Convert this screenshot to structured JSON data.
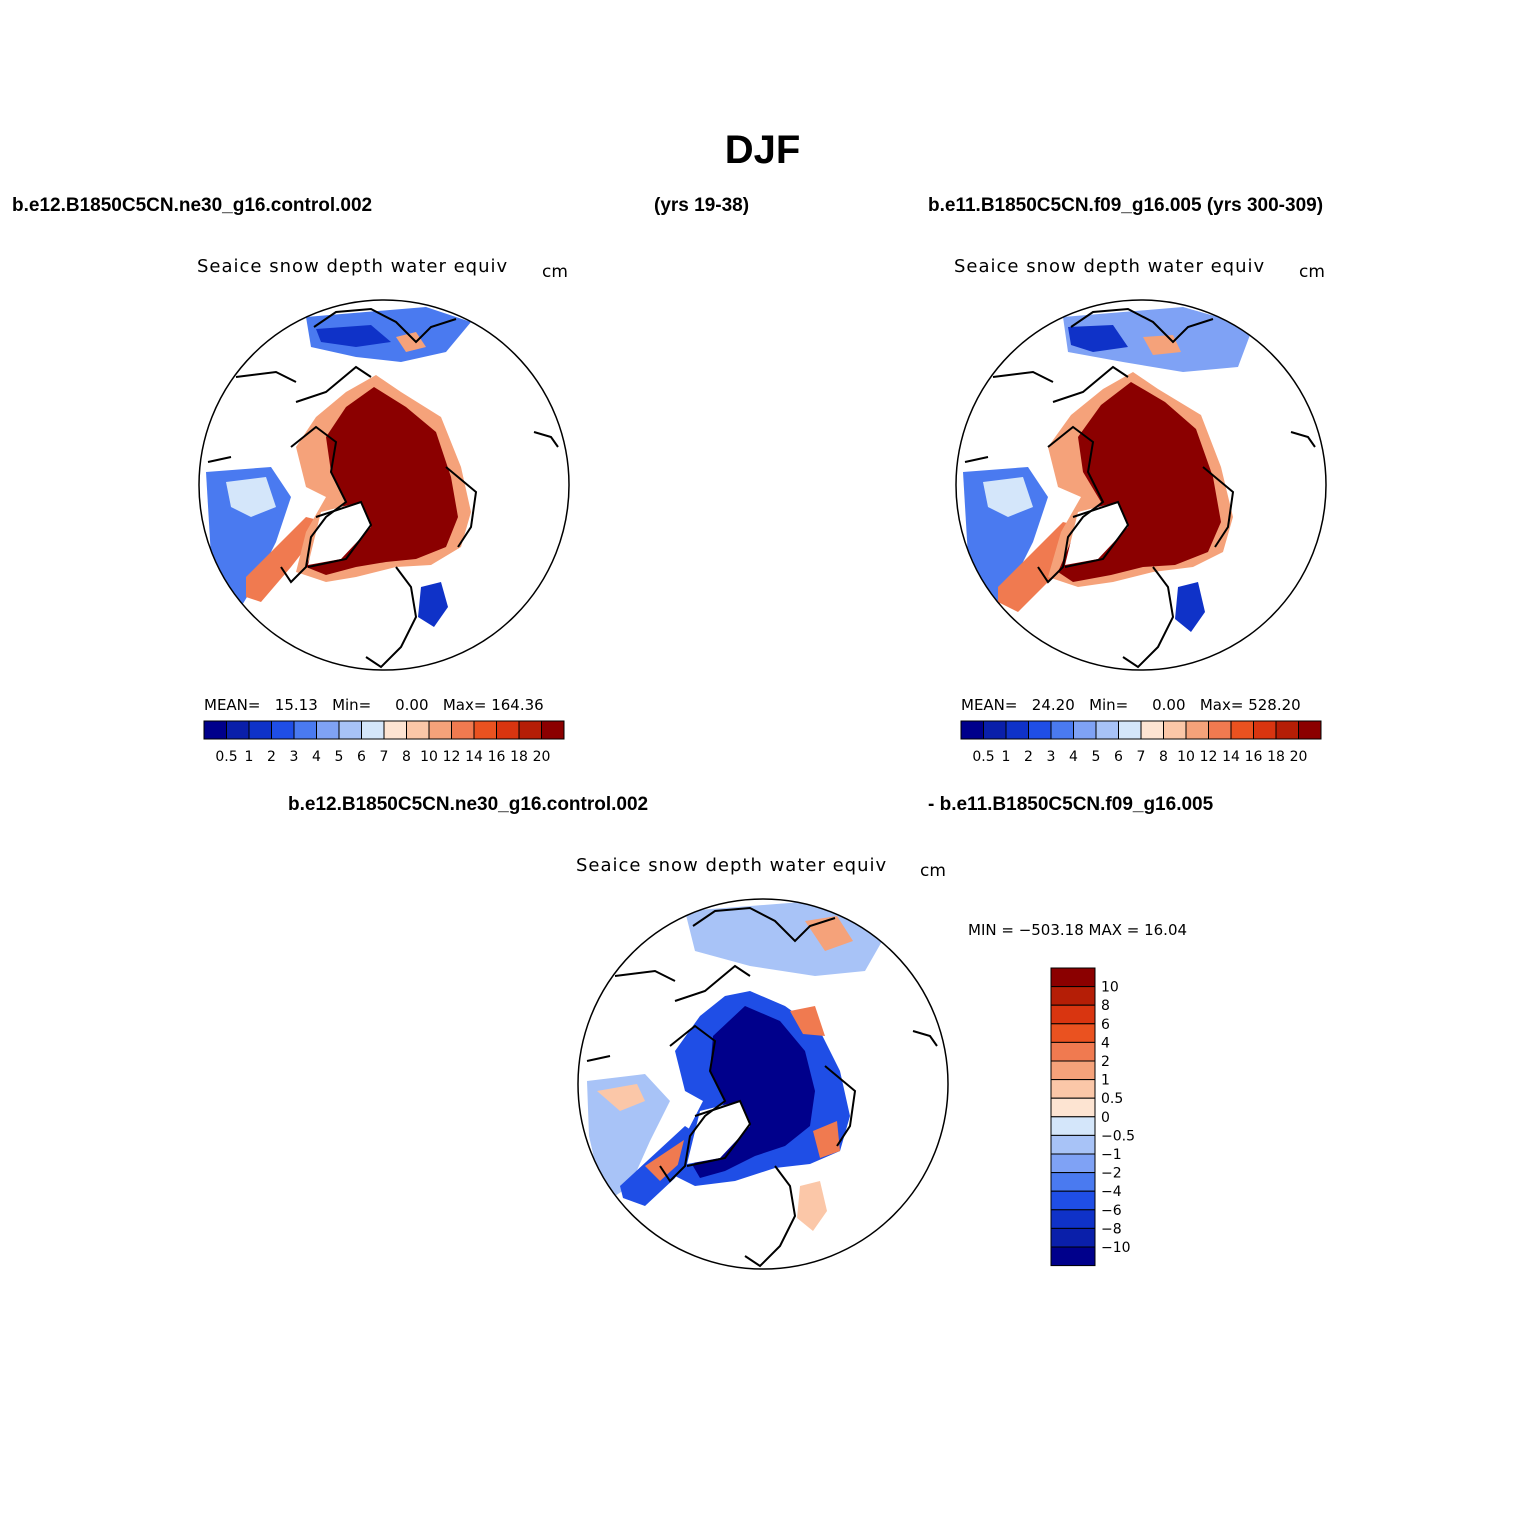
{
  "figure": {
    "title": "DJF",
    "left_case": "b.e12.B1850C5CN.ne30_g16.control.002",
    "left_years": "(yrs 19-38)",
    "right_case": "b.e11.B1850C5CN.f09_g16.005 (yrs 300-309)",
    "diff_left": "b.e12.B1850C5CN.ne30_g16.control.002",
    "diff_right": "- b.e11.B1850C5CN.f09_g16.005"
  },
  "panels": [
    {
      "variable": "Seaice snow depth water equiv",
      "units": "cm",
      "mean_label": "MEAN=",
      "mean": "15.13",
      "min_label": "Min=",
      "min": "0.00",
      "max_label": "Max=",
      "max": "164.36"
    },
    {
      "variable": "Seaice snow depth water equiv",
      "units": "cm",
      "mean_label": "MEAN=",
      "mean": "24.20",
      "min_label": "Min=",
      "min": "0.00",
      "max_label": "Max=",
      "max": "528.20"
    },
    {
      "variable": "Seaice snow depth water equiv",
      "units": "cm",
      "minmax": "MIN = −503.18 MAX =   16.04"
    }
  ],
  "colorbars": {
    "absolute": {
      "levels": [
        "0.5",
        "1",
        "2",
        "3",
        "4",
        "5",
        "6",
        "7",
        "8",
        "10",
        "12",
        "14",
        "16",
        "18",
        "20"
      ],
      "colors": [
        "#00008b",
        "#0a1faa",
        "#0f32c8",
        "#1f4ee6",
        "#4a7af0",
        "#7fa2f5",
        "#a8c3f7",
        "#d4e6fa",
        "#fde4d2",
        "#fbc7a8",
        "#f5a27a",
        "#f07a50",
        "#ea5220",
        "#d93510",
        "#b51e06",
        "#8b0000"
      ]
    },
    "difference": {
      "levels": [
        "10",
        "8",
        "6",
        "4",
        "2",
        "1",
        "0.5",
        "0",
        "−0.5",
        "−1",
        "−2",
        "−4",
        "−6",
        "−8",
        "−10"
      ],
      "colors": [
        "#8b0000",
        "#b51e06",
        "#d93510",
        "#ea5220",
        "#f07a50",
        "#f5a27a",
        "#fbc7a8",
        "#fde4d2",
        "#d4e6fa",
        "#a8c3f7",
        "#7fa2f5",
        "#4a7af0",
        "#1f4ee6",
        "#0f32c8",
        "#0a1faa",
        "#00008b"
      ]
    }
  }
}
